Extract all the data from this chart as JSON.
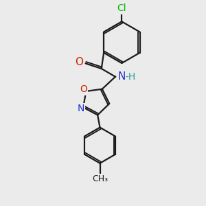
{
  "background_color": "#ebebeb",
  "bond_color": "#1a1a1a",
  "bond_width": 1.6,
  "atom_colors": {
    "Cl": "#00bb00",
    "O": "#cc2200",
    "N": "#2233cc",
    "H_label": "#339999"
  },
  "font_size_atom": 10,
  "font_size_small": 9
}
